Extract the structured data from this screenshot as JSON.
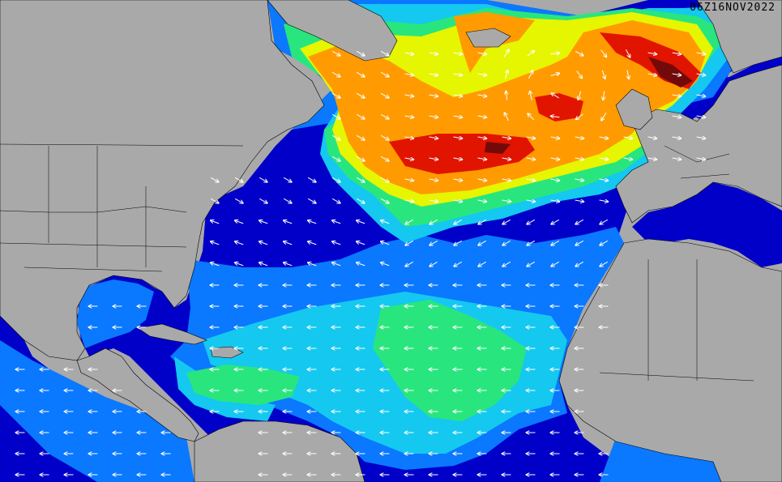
{
  "timestamp": "06Z16NOV2022",
  "colors": {
    "land": "#a9a9a9",
    "boundary": "#000000",
    "arrow": "#ffffff",
    "water_deep": "#0000c8",
    "water_blue": "#0a78ff",
    "water_cyan": "#14c8f0",
    "water_green": "#28e67d",
    "swell_yellow": "#e6f500",
    "swell_orange": "#ff9b00",
    "swell_red": "#e11400",
    "swell_darkred": "#730a0a"
  },
  "legend_semantics": "wave-height-and-direction-forecast-north-atlantic"
}
